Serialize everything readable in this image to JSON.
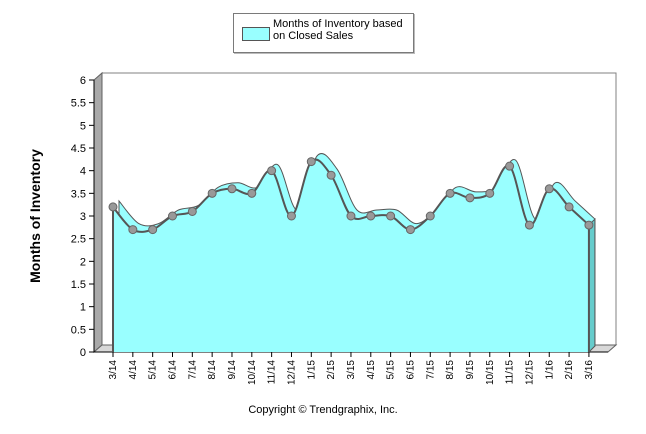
{
  "chart_data": {
    "type": "area",
    "title": "",
    "xlabel": "",
    "ylabel": "Months of Inventory",
    "ylim": [
      0,
      6
    ],
    "yticks": [
      "0",
      "0.5",
      "1",
      "1.5",
      "2",
      "2.5",
      "3",
      "3.5",
      "4",
      "4.5",
      "5",
      "5.5",
      "6"
    ],
    "categories": [
      "3/14",
      "4/14",
      "5/14",
      "6/14",
      "7/14",
      "8/14",
      "9/14",
      "10/14",
      "11/14",
      "12/14",
      "1/15",
      "2/15",
      "3/15",
      "4/15",
      "5/15",
      "6/15",
      "7/15",
      "8/15",
      "9/15",
      "10/15",
      "11/15",
      "12/15",
      "1/16",
      "2/16",
      "3/16"
    ],
    "series": [
      {
        "name": "Months of Inventory based on Closed Sales",
        "values": [
          3.2,
          2.7,
          2.7,
          3.0,
          3.1,
          3.5,
          3.6,
          3.5,
          4.0,
          3.0,
          4.2,
          3.9,
          3.0,
          3.0,
          3.0,
          2.7,
          3.0,
          3.5,
          3.4,
          3.5,
          4.1,
          2.8,
          3.6,
          3.2,
          2.8
        ]
      }
    ],
    "legend": {
      "position": "top-center",
      "label_line1": "Months of Inventory based",
      "label_line2": "on Closed Sales"
    },
    "grid": false,
    "colors": {
      "fill": "#99ffff",
      "line": "#555555",
      "marker": "#999999",
      "wall": "#a0a0a0"
    }
  },
  "footer": {
    "copyright": "Copyright © Trendgraphix, Inc."
  }
}
